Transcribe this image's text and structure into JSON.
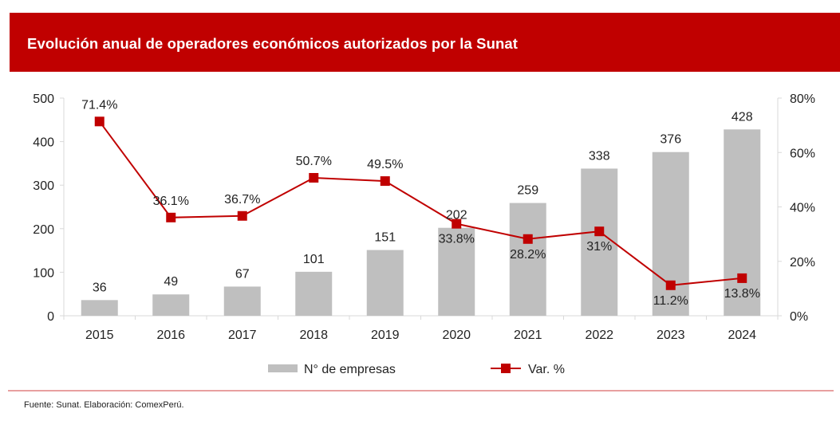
{
  "header": {
    "title": "Evolución anual de operadores económicos autorizados por la Sunat"
  },
  "footer": {
    "source": "Fuente: Sunat. Elaboración: ComexPerú."
  },
  "colors": {
    "banner": "#c00000",
    "bar": "#bfbfbf",
    "line": "#c00000",
    "axis": "#d9d9d9",
    "rule": "#e08080"
  },
  "chart_data": {
    "type": "bar+line",
    "title": "Evolución anual de operadores económicos autorizados por la Sunat",
    "categories": [
      "2015",
      "2016",
      "2017",
      "2018",
      "2019",
      "2020",
      "2021",
      "2022",
      "2023",
      "2024"
    ],
    "series": [
      {
        "name": "N° de empresas",
        "type": "bar",
        "axis": "left",
        "values": [
          36,
          49,
          67,
          101,
          151,
          202,
          259,
          338,
          376,
          428
        ],
        "labels": [
          "36",
          "49",
          "67",
          "101",
          "151",
          "202",
          "259",
          "338",
          "376",
          "428"
        ]
      },
      {
        "name": "Var. %",
        "type": "line",
        "axis": "right",
        "values": [
          71.4,
          36.1,
          36.7,
          50.7,
          49.5,
          33.8,
          28.2,
          31.0,
          11.2,
          13.8
        ],
        "labels": [
          "71.4%",
          "36.1%",
          "36.7%",
          "50.7%",
          "49.5%",
          "33.8%",
          "28.2%",
          "31%",
          "11.2%",
          "13.8%"
        ]
      }
    ],
    "y_left": {
      "range": [
        0,
        500
      ],
      "ticks": [
        "0",
        "100",
        "200",
        "300",
        "400",
        "500"
      ]
    },
    "y_right": {
      "range": [
        0,
        80
      ],
      "ticks": [
        "0%",
        "20%",
        "40%",
        "60%",
        "80%"
      ]
    },
    "grid": false,
    "legend": {
      "position": "bottom",
      "items": [
        "N° de empresas",
        "Var. %"
      ]
    }
  }
}
